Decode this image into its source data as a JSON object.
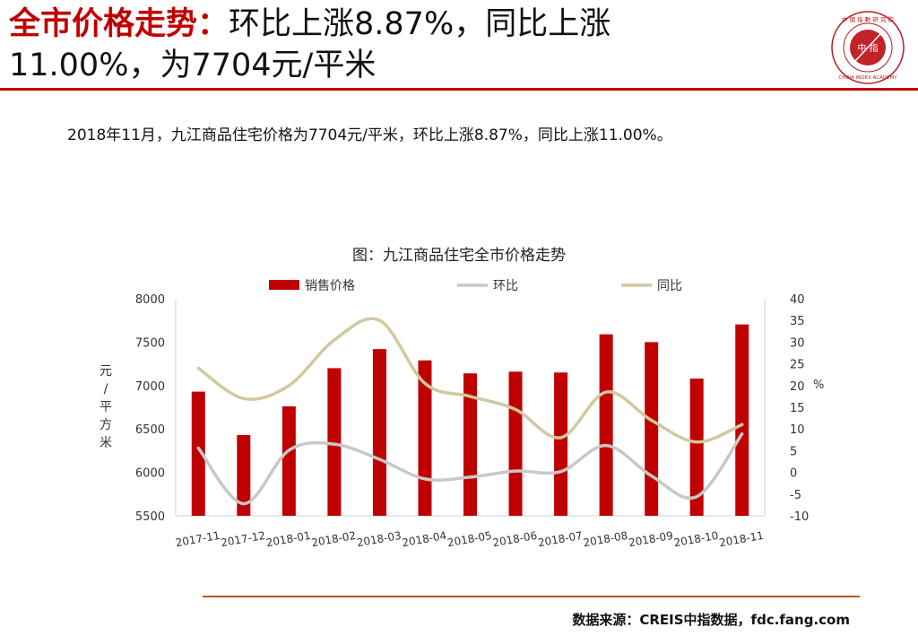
{
  "header": {
    "title_highlight": "全市价格走势：",
    "title_line1_rest": "环比上涨8.87%，同比上涨",
    "title_line2": "11.00%，为7704元/平米"
  },
  "logo": {
    "center_text": "中 指",
    "top_text": "中 國 指 數 研 究 院",
    "bottom_text": "CHINA INDEX ACADEMY"
  },
  "summary": "2018年11月，九江商品住宅价格为7704元/平米，环比上涨8.87%，同比上涨11.00%。",
  "chart_data": {
    "type": "bar",
    "title": "图：九江商品住宅全市价格走势",
    "categories": [
      "2017-11",
      "2017-12",
      "2018-01",
      "2018-02",
      "2018-03",
      "2018-04",
      "2018-05",
      "2018-06",
      "2018-07",
      "2018-08",
      "2018-09",
      "2018-10",
      "2018-11"
    ],
    "series": [
      {
        "name": "销售价格",
        "type": "bar",
        "axis": "left",
        "color": "#c00000",
        "values": [
          6930,
          6430,
          6760,
          7200,
          7420,
          7290,
          7140,
          7160,
          7150,
          7590,
          7500,
          7080,
          7704
        ]
      },
      {
        "name": "环比",
        "type": "line",
        "axis": "right",
        "color": "#c8c8c8",
        "values": [
          5.6,
          -7.2,
          5.1,
          6.5,
          3.0,
          -1.5,
          -1.1,
          0.3,
          0.2,
          6.2,
          -0.8,
          -5.6,
          8.87
        ]
      },
      {
        "name": "同比",
        "type": "line",
        "axis": "right",
        "color": "#d0c8a0",
        "values": [
          24.0,
          17.0,
          20.0,
          30.5,
          35.0,
          20.5,
          17.5,
          14.5,
          8.0,
          18.5,
          12.0,
          7.0,
          11.0
        ]
      }
    ],
    "ylabel": "元/平方米",
    "ylim": [
      5500,
      8000
    ],
    "yticks": [
      "8000",
      "7500",
      "7000",
      "6500",
      "6000",
      "5500"
    ],
    "y2label": "%",
    "y2lim": [
      -10,
      40
    ],
    "y2ticks": [
      "40",
      "35",
      "30",
      "25",
      "20",
      "15",
      "10",
      "5",
      "0",
      "-5",
      "-10"
    ],
    "legend_position": "top",
    "grid": false
  },
  "footer": {
    "source": "数据来源：CREIS中指数据，fdc.fang.com"
  }
}
